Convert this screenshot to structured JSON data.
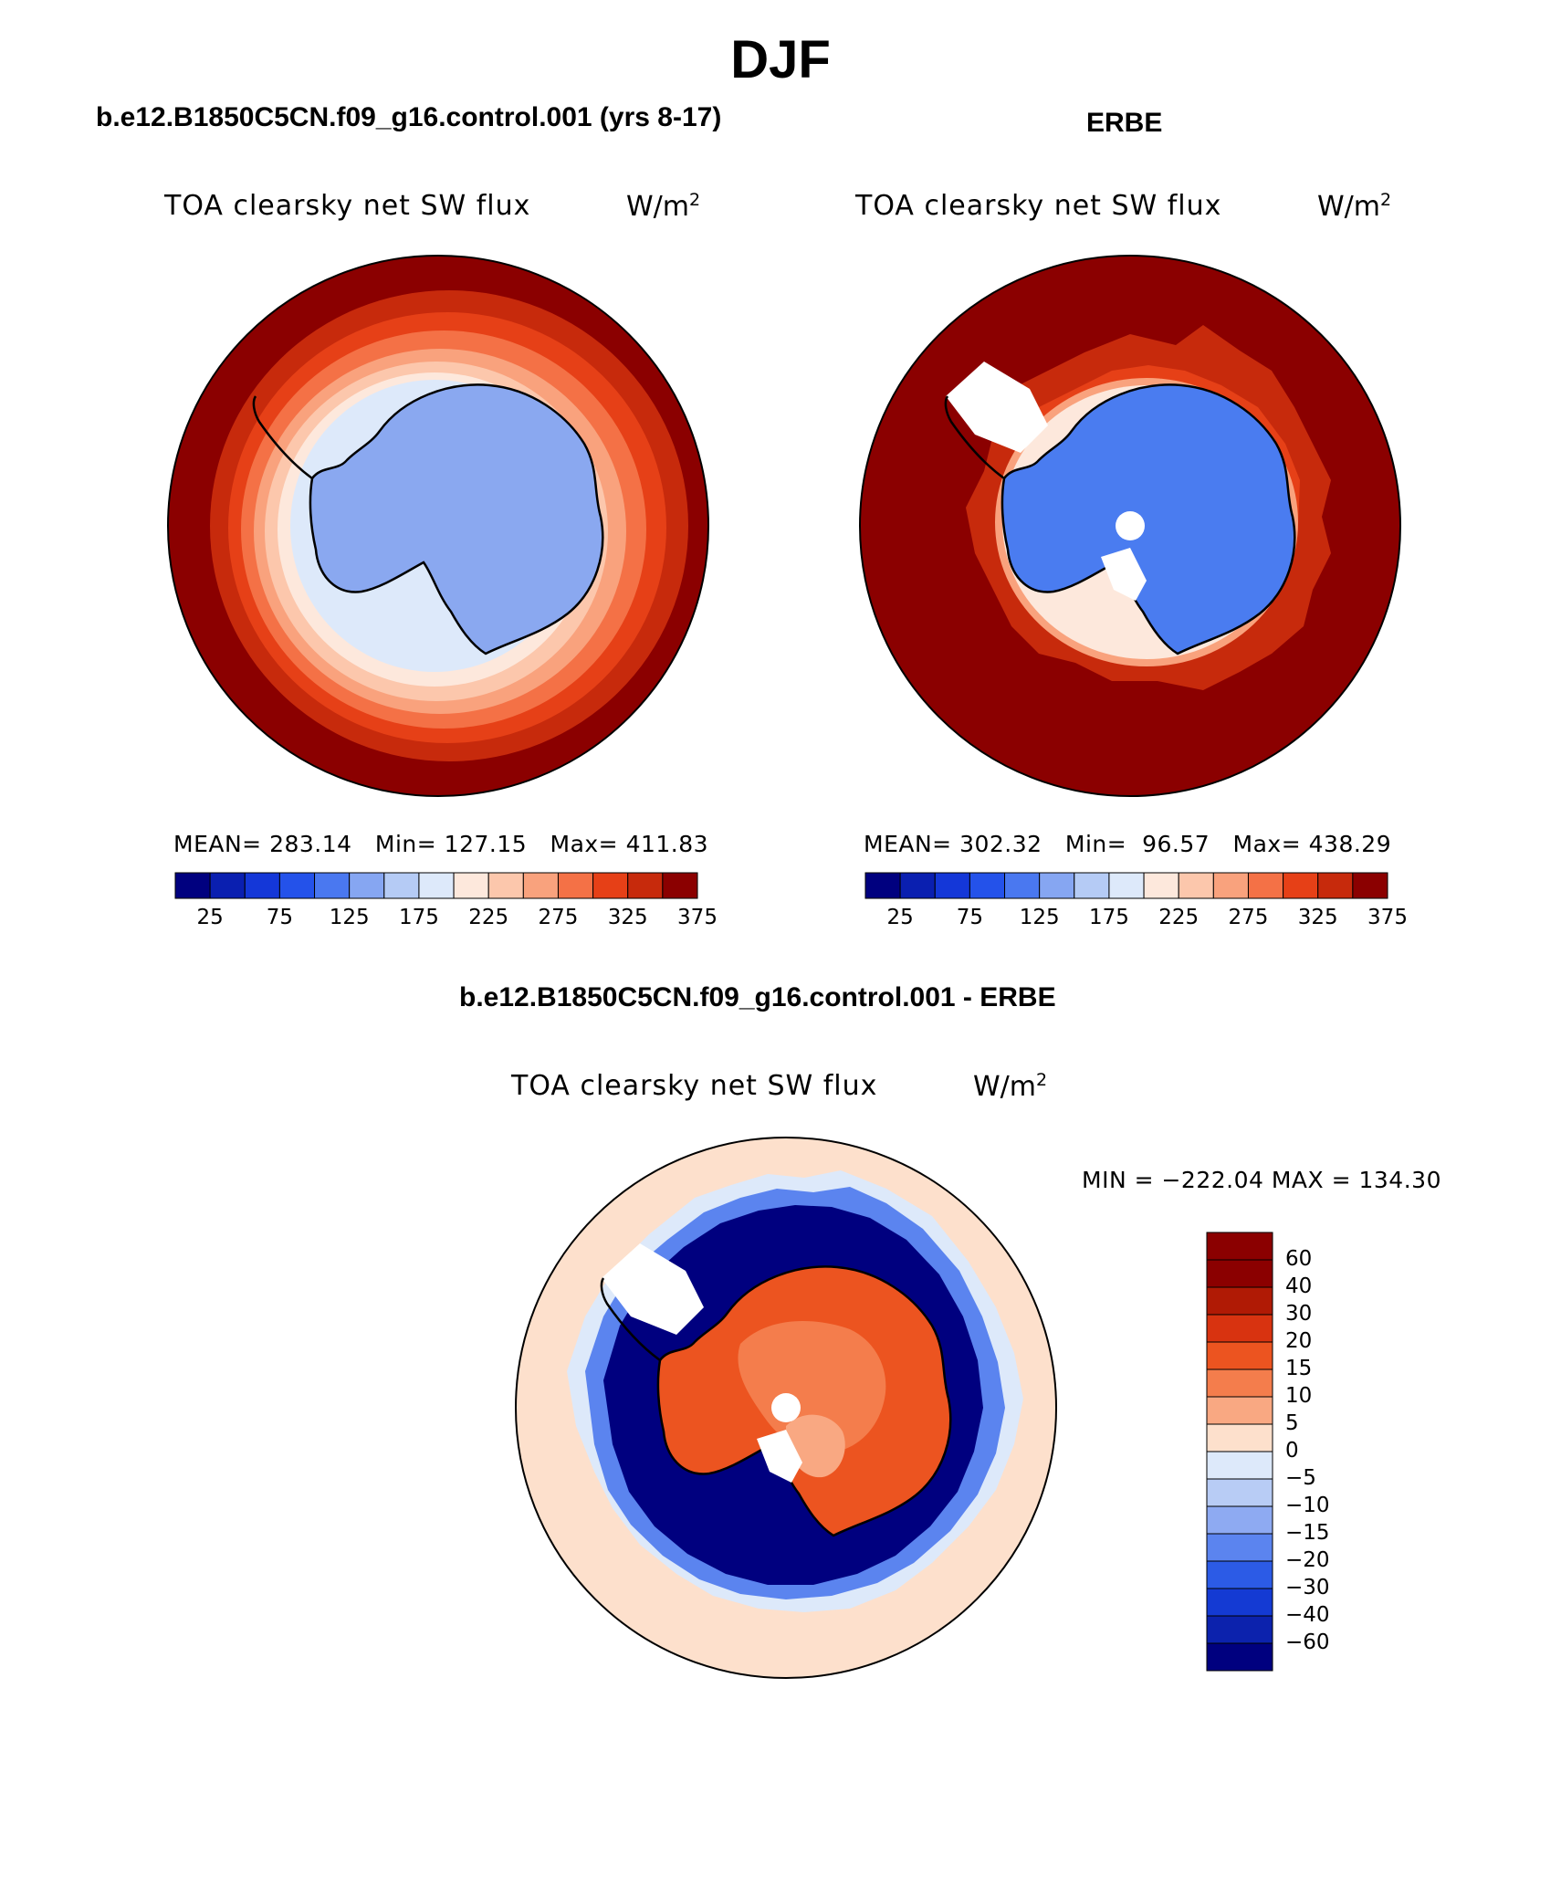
{
  "season": "DJF",
  "panels": {
    "model": {
      "caption": "b.e12.B1850C5CN.f09_g16.control.001 (yrs 8-17)",
      "variable": "TOA clearsky net SW flux",
      "units_base": "W/m",
      "units_exp": "2",
      "mean_label": "MEAN=",
      "mean": "283.14",
      "min_label": "Min=",
      "min": "127.15",
      "max_label": "Max=",
      "max": "411.83"
    },
    "obs": {
      "caption": "ERBE",
      "variable": "TOA clearsky net SW flux",
      "units_base": "W/m",
      "units_exp": "2",
      "mean_label": "MEAN=",
      "mean": "302.32",
      "min_label": "Min=",
      "min": "96.57",
      "max_label": "Max=",
      "max": "438.29"
    },
    "diff": {
      "caption": "b.e12.B1850C5CN.f09_g16.control.001 - ERBE",
      "variable": "TOA clearsky net SW flux",
      "units_base": "W/m",
      "units_exp": "2",
      "minmax_text": "MIN = −222.04 MAX = 134.30"
    }
  },
  "abs_colorbar": {
    "colors": [
      "#00007f",
      "#0a1fb0",
      "#1437d8",
      "#2452ea",
      "#4a78f0",
      "#86a6f2",
      "#b5cbf5",
      "#dde9fa",
      "#fde8dc",
      "#fcc7ac",
      "#f9a27d",
      "#f47146",
      "#e64017",
      "#c72a0c",
      "#8b0000"
    ],
    "tick_labels": [
      "25",
      "75",
      "125",
      "175",
      "225",
      "275",
      "325",
      "375"
    ]
  },
  "diff_colorbar": {
    "colors": [
      "#8b0000",
      "#b01a05",
      "#d83310",
      "#ec5420",
      "#f47d4c",
      "#f9a882",
      "#fde0cc",
      "#dde9fa",
      "#b8ccf5",
      "#8eaaf2",
      "#5b84ef",
      "#2c5be6",
      "#143ad3",
      "#0c22ad",
      "#00007f"
    ],
    "tick_labels": [
      "60",
      "40",
      "30",
      "20",
      "15",
      "10",
      "5",
      "0",
      "−5",
      "−10",
      "−15",
      "−20",
      "−30",
      "−40",
      "−60"
    ]
  },
  "colors": {
    "ocean_high": "#8b0000",
    "model_ice": "#8aa8f0",
    "obs_ice": "#4a7cf0",
    "diff_ocean_neg": "#00007f",
    "diff_land_pos": "#ec5420",
    "diff_far": "#fde0cc"
  }
}
